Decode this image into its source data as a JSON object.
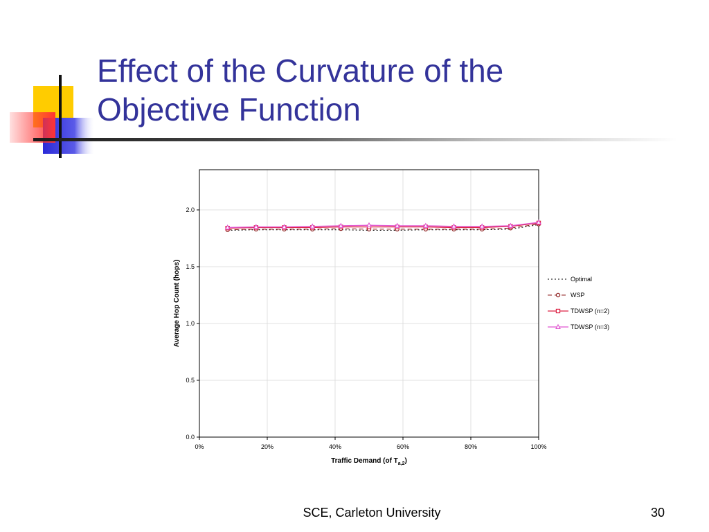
{
  "slide": {
    "title_line1": "Effect of the Curvature of the",
    "title_line2": "Objective Function",
    "footer": "SCE, Carleton University",
    "page_number": "30",
    "title_color": "#33339a"
  },
  "chart_data": {
    "type": "line",
    "xlabel": "Traffic Demand (of T",
    "xlabel_sub": "a,2",
    "xlabel_suffix": ")",
    "ylabel": "Average Hop Count (hops)",
    "xlim": [
      0,
      100
    ],
    "ylim": [
      0,
      2.0
    ],
    "x_ticks": [
      0,
      20,
      40,
      60,
      80,
      100
    ],
    "x_tick_labels": [
      "0%",
      "20%",
      "40%",
      "60%",
      "80%",
      "100%"
    ],
    "y_ticks": [
      0,
      0.5,
      1.0,
      1.5,
      2.0
    ],
    "y_tick_labels": [
      "0.0",
      "0.5",
      "1.0",
      "1.5",
      "2.0"
    ],
    "grid": true,
    "legend_position": "right",
    "x": [
      8.3,
      16.7,
      25,
      33.3,
      41.7,
      50,
      58.3,
      66.7,
      75,
      83.3,
      91.7,
      100
    ],
    "series": [
      {
        "name": "Optimal",
        "color": "#000000",
        "style": "dotted",
        "marker": "none",
        "values": [
          1.82,
          1.825,
          1.825,
          1.825,
          1.825,
          1.82,
          1.82,
          1.825,
          1.825,
          1.825,
          1.83,
          1.87
        ]
      },
      {
        "name": "WSP",
        "color": "#8b1a1a",
        "style": "dashed",
        "marker": "circle",
        "values": [
          1.825,
          1.83,
          1.83,
          1.83,
          1.835,
          1.83,
          1.83,
          1.83,
          1.83,
          1.83,
          1.84,
          1.875
        ]
      },
      {
        "name": "TDWSP (n=2)",
        "color": "#dd2244",
        "style": "solid",
        "marker": "square",
        "values": [
          1.84,
          1.845,
          1.845,
          1.845,
          1.85,
          1.85,
          1.85,
          1.85,
          1.845,
          1.845,
          1.855,
          1.885
        ]
      },
      {
        "name": "TDWSP (n=3)",
        "color": "#e055d0",
        "style": "solid",
        "marker": "triangle",
        "values": [
          1.845,
          1.85,
          1.85,
          1.855,
          1.86,
          1.865,
          1.86,
          1.86,
          1.855,
          1.855,
          1.86,
          1.89
        ]
      }
    ]
  }
}
